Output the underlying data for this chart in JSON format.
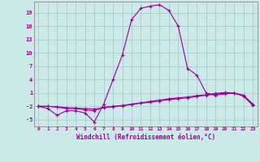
{
  "xlabel": "Windchill (Refroidissement éolien,°C)",
  "background_color": "#cce8e8",
  "grid_color": "#aacccc",
  "line_color": "#990099",
  "spine_color": "#888888",
  "yticks": [
    -5,
    -2,
    1,
    4,
    7,
    10,
    13,
    16,
    19
  ],
  "xticks": [
    0,
    1,
    2,
    3,
    4,
    5,
    6,
    7,
    8,
    9,
    10,
    11,
    12,
    13,
    14,
    15,
    16,
    17,
    18,
    19,
    20,
    21,
    22,
    23
  ],
  "ylim": [
    -6.5,
    21.5
  ],
  "xlim": [
    -0.5,
    23.5
  ],
  "series": [
    {
      "x": [
        0,
        1,
        2,
        3,
        4,
        5,
        6,
        7,
        8,
        9,
        10,
        11,
        12,
        13,
        14,
        15,
        16,
        17,
        18,
        19,
        20,
        21,
        22,
        23
      ],
      "y": [
        -2,
        -2.5,
        -4,
        -3,
        -3,
        -3.5,
        -5.5,
        -1.5,
        4,
        9.5,
        17.5,
        20,
        20.5,
        20.8,
        19.5,
        16,
        6.5,
        5,
        1,
        0.5,
        0.8,
        1,
        0.5,
        -1.5
      ]
    },
    {
      "x": [
        0,
        1,
        2,
        3,
        4,
        5,
        6,
        7,
        8,
        9,
        10,
        11,
        12,
        13,
        14,
        15,
        16,
        17,
        18,
        19,
        20,
        21,
        22,
        23
      ],
      "y": [
        -2,
        -2,
        -2.1,
        -2.3,
        -2.4,
        -2.5,
        -2.6,
        -2.3,
        -2.1,
        -1.9,
        -1.6,
        -1.3,
        -1.1,
        -0.8,
        -0.5,
        -0.3,
        -0.1,
        0.2,
        0.5,
        0.7,
        0.9,
        0.9,
        0.4,
        -1.5
      ]
    },
    {
      "x": [
        0,
        1,
        2,
        3,
        4,
        5,
        6,
        7,
        8,
        9,
        10,
        11,
        12,
        13,
        14,
        15,
        16,
        17,
        18,
        19,
        20,
        21,
        22,
        23
      ],
      "y": [
        -2,
        -2,
        -2.2,
        -2.5,
        -2.5,
        -2.8,
        -3.0,
        -2.2,
        -2.0,
        -1.8,
        -1.5,
        -1.2,
        -0.9,
        -0.6,
        -0.3,
        -0.1,
        0.1,
        0.4,
        0.6,
        0.9,
        1.1,
        1.0,
        0.3,
        -1.8
      ]
    }
  ]
}
